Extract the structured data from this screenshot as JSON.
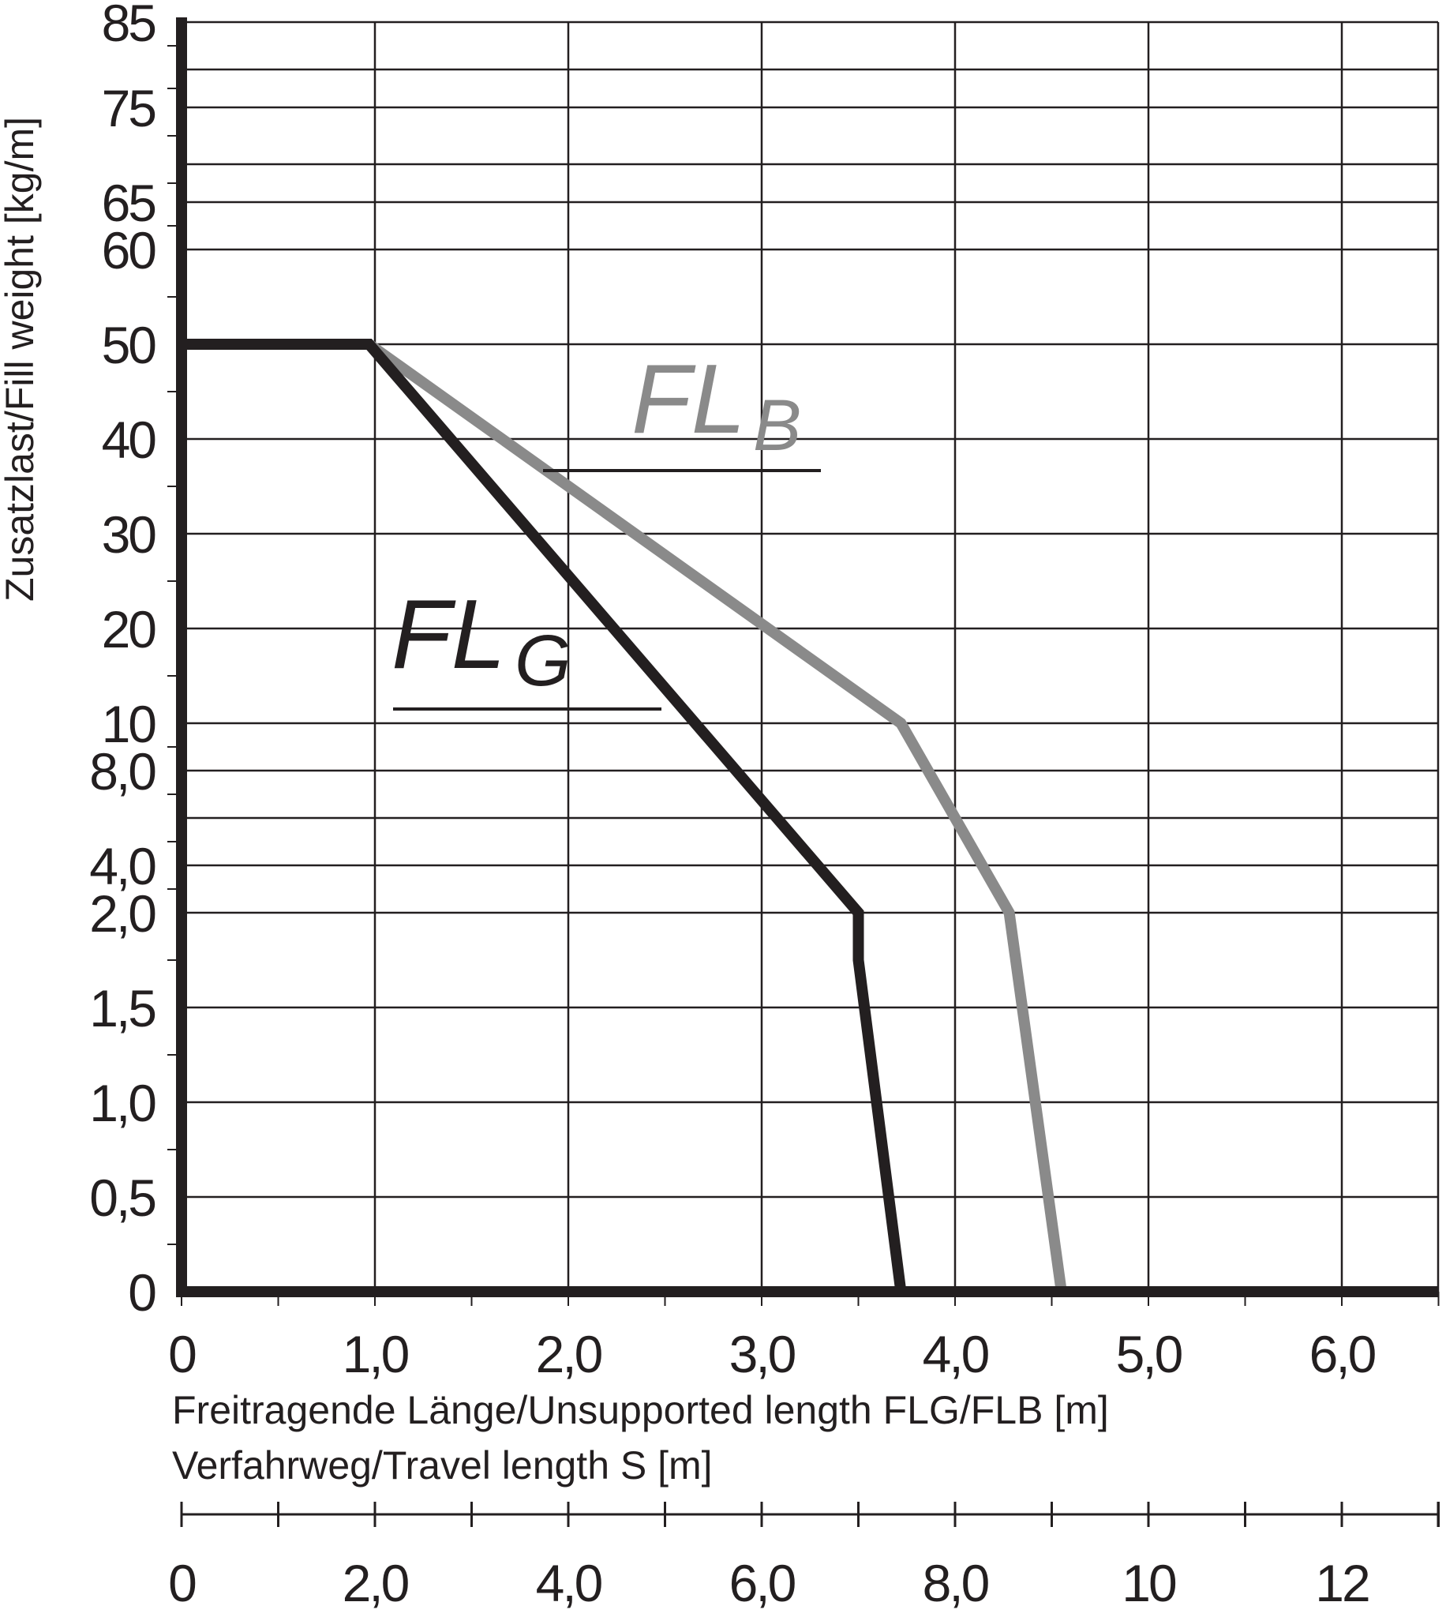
{
  "chart_data": {
    "type": "line",
    "x_axis": {
      "label_line1": "Freitragende Länge/Unsupported length FLG/FLB [m]",
      "label_line2": "Verfahrweg/Travel length S [m]",
      "range": [
        0,
        6.5
      ],
      "tick_values": [
        0,
        1,
        2,
        3,
        4,
        5,
        6
      ],
      "tick_labels": [
        "0",
        "1,0",
        "2,0",
        "3,0",
        "4,0",
        "5,0",
        "6,0"
      ]
    },
    "x2_axis": {
      "range": [
        0,
        13
      ],
      "tick_values": [
        0,
        2,
        4,
        6,
        8,
        10,
        12
      ],
      "tick_labels": [
        "0",
        "2,0",
        "4,0",
        "6,0",
        "8,0",
        "10",
        "12"
      ]
    },
    "y_axis": {
      "label": "Zusatzlast/Fill weight [kg/m]",
      "scale": "non-linear (categorical gridlines)",
      "tick_labels": [
        "0",
        "0,5",
        "1,0",
        "1,5",
        "2,0",
        "4,0",
        "8,0",
        "10",
        "20",
        "30",
        "40",
        "50",
        "60",
        "65",
        "75",
        "85"
      ]
    },
    "grid": true,
    "series": [
      {
        "name": "FL G",
        "color": "#231f20",
        "points": [
          [
            0,
            50
          ],
          [
            0.97,
            50
          ],
          [
            3.5,
            2.0
          ],
          [
            3.5,
            1.75
          ],
          [
            3.72,
            0
          ]
        ]
      },
      {
        "name": "FL B",
        "color": "#8a8a8a",
        "points": [
          [
            0.97,
            50
          ],
          [
            3.72,
            10
          ],
          [
            4.28,
            2.0
          ],
          [
            4.55,
            0
          ]
        ]
      }
    ],
    "series_labels": [
      {
        "main": "FL",
        "sub": "G",
        "color": "#231f20"
      },
      {
        "main": "FL",
        "sub": "B",
        "color": "#8a8a8a"
      }
    ]
  }
}
